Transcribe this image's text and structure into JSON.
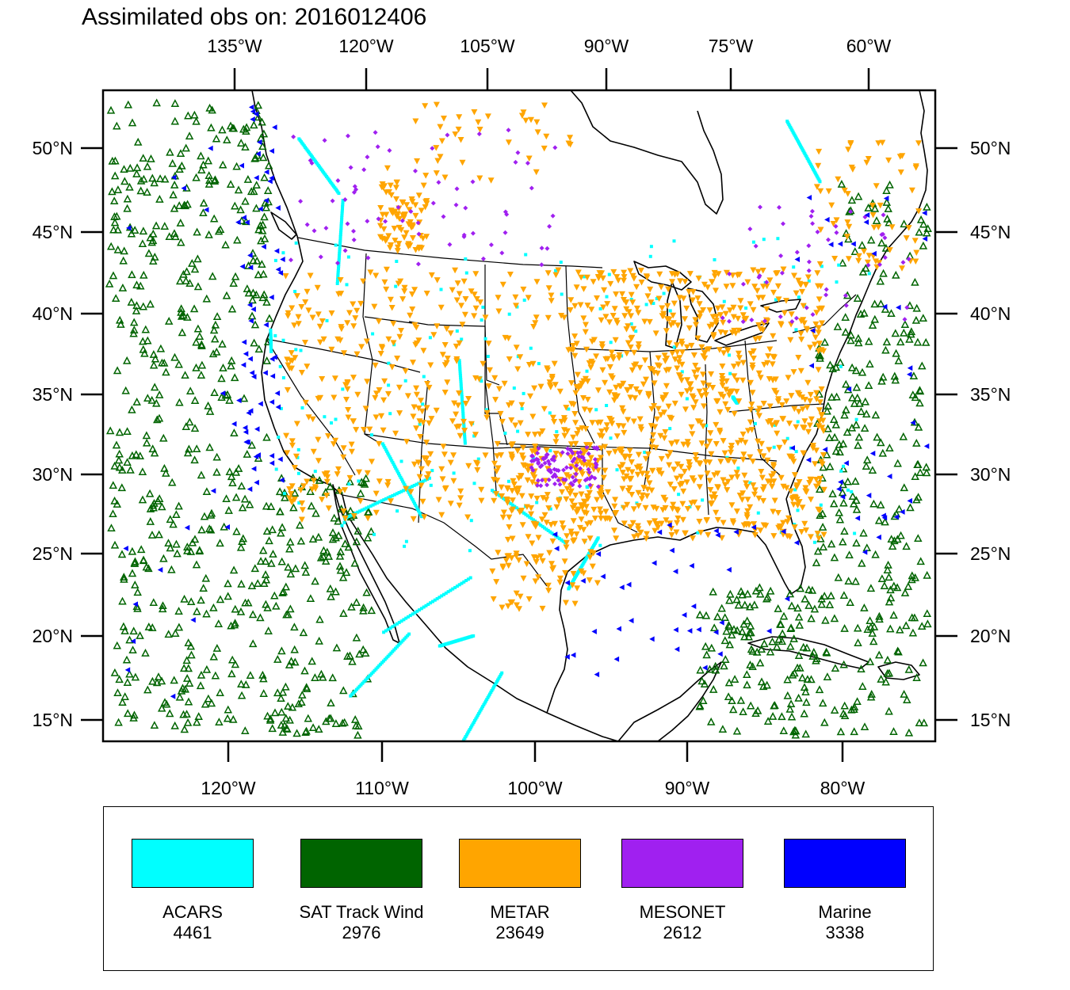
{
  "title": "Assimilated obs on: 2016012406",
  "top_axis": [
    "135°W",
    "120°W",
    "105°W",
    "90°W",
    "75°W",
    "60°W"
  ],
  "bottom_axis": [
    "120°W",
    "110°W",
    "100°W",
    "90°W",
    "80°W"
  ],
  "left_axis": [
    "50°N",
    "45°N",
    "40°N",
    "35°N",
    "30°N",
    "25°N",
    "20°N",
    "15°N"
  ],
  "right_axis": [
    "50°N",
    "45°N",
    "40°N",
    "35°N",
    "30°N",
    "25°N",
    "20°N",
    "15°N"
  ],
  "legend": [
    {
      "name": "ACARS",
      "count": "4461",
      "color": "#00ffff",
      "marker": "square"
    },
    {
      "name": "SAT Track Wind",
      "count": "2976",
      "color": "#006400",
      "marker": "triangle-up-open"
    },
    {
      "name": "METAR",
      "count": "23649",
      "color": "#ffa500",
      "marker": "triangle-down"
    },
    {
      "name": "MESONET",
      "count": "2612",
      "color": "#a020f0",
      "marker": "diamond"
    },
    {
      "name": "Marine",
      "count": "3338",
      "color": "#0000ff",
      "marker": "triangle-left"
    }
  ]
}
